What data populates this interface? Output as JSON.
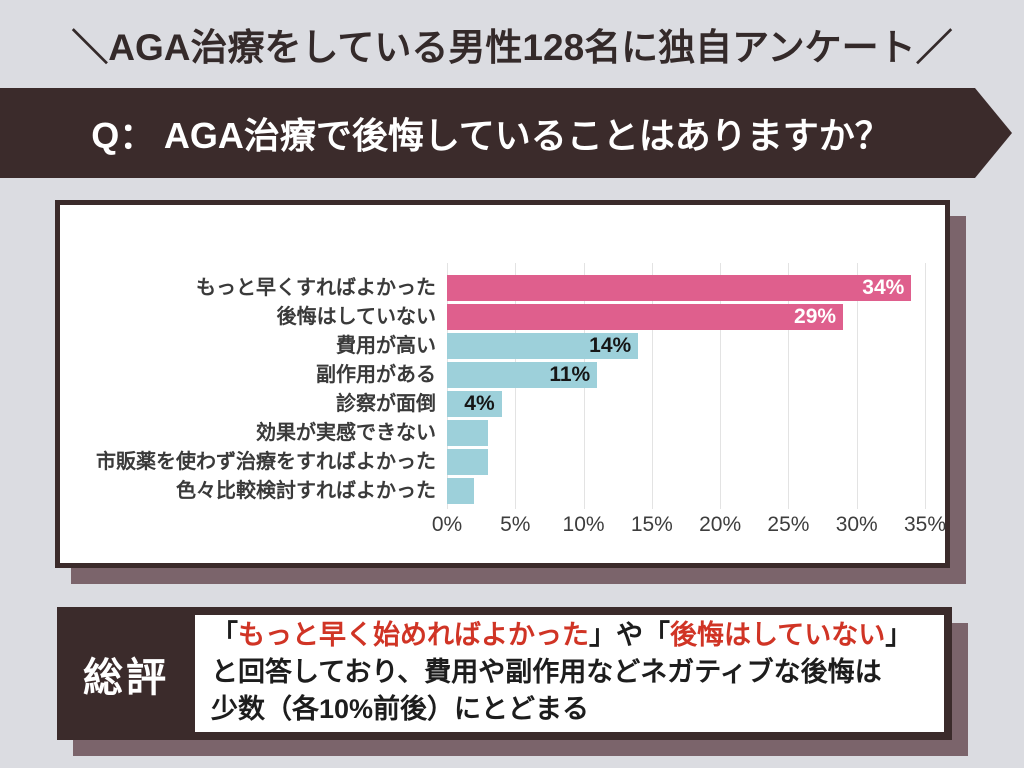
{
  "page": {
    "header": "＼AGA治療をしている男性128名に独自アンケート／",
    "question_banner": "Q： AGA治療で後悔していることはありますか？"
  },
  "chart_data": {
    "type": "bar",
    "orientation": "horizontal",
    "categories": [
      "もっと早くすればよかった",
      "後悔はしていない",
      "費用が高い",
      "副作用がある",
      "診察が面倒",
      "効果が実感できない",
      "市販薬を使わず治療をすればよかった",
      "色々比較検討すればよかった"
    ],
    "values": [
      34,
      29,
      14,
      11,
      4,
      3,
      3,
      2
    ],
    "value_labels": [
      "34%",
      "29%",
      "14%",
      "11%",
      "4%",
      "",
      "",
      ""
    ],
    "bar_colors": [
      "#df5f8d",
      "#df5f8d",
      "#9dd0da",
      "#9dd0da",
      "#9dd0da",
      "#9dd0da",
      "#9dd0da",
      "#9dd0da"
    ],
    "value_label_colors": [
      "#ffffff",
      "#ffffff",
      "#161616",
      "#161616",
      "#161616",
      "",
      "",
      ""
    ],
    "x_ticks": [
      "0%",
      "5%",
      "10%",
      "15%",
      "20%",
      "25%",
      "30%",
      "35%"
    ],
    "xlim": [
      0,
      35
    ],
    "grid": true,
    "legend": false
  },
  "summary": {
    "heading": "総評",
    "bracket_open": "「",
    "phrase1": "もっと早く始めればよかった",
    "mid": "」や「",
    "phrase2": "後悔はしていない",
    "bracket_close": "」",
    "line2": "と回答しており、費用や副作用などネガティブな後悔は",
    "line3": "少数（各10%前後）にとどまる"
  },
  "colors": {
    "background": "#dbdce1",
    "dark_brown": "#3b2b2b",
    "shadow": "#7b646b",
    "pink": "#df5f8d",
    "teal": "#9dd0da",
    "red_accent": "#d03425",
    "gridline": "#e3e3e3"
  }
}
